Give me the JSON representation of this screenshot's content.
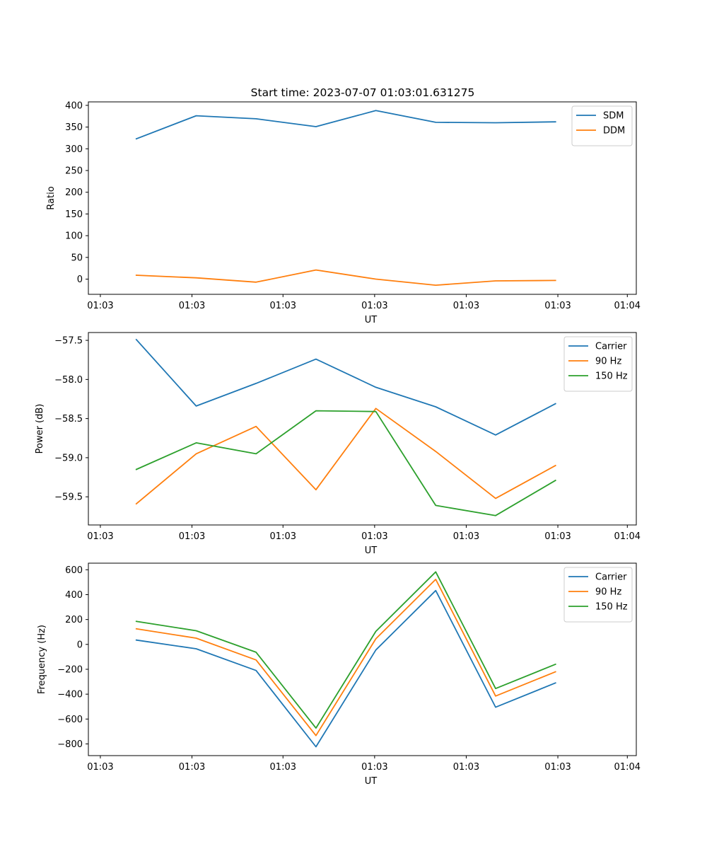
{
  "figure": {
    "title": "Start time: 2023-07-07 01:03:01.631275"
  },
  "chart_data": [
    {
      "type": "line",
      "title": "Start time: 2023-07-07 01:03:01.631275",
      "xlabel": "UT",
      "ylabel": "Ratio",
      "x": [
        1,
        2,
        3,
        4,
        5,
        6,
        7,
        8
      ],
      "xlim": [
        0.2,
        9.35
      ],
      "x_ticks": [
        0.4,
        1.93,
        3.45,
        4.98,
        6.51,
        8.04,
        9.2
      ],
      "x_tick_labels": [
        "01:03",
        "01:03",
        "01:03",
        "01:03",
        "01:03",
        "01:03",
        "01:04"
      ],
      "ylim": [
        -35,
        408
      ],
      "y_ticks": [
        0,
        50,
        100,
        150,
        200,
        250,
        300,
        350,
        400
      ],
      "y_tick_labels": [
        "0",
        "50",
        "100",
        "150",
        "200",
        "250",
        "300",
        "350",
        "400"
      ],
      "legend": "top-right",
      "series": [
        {
          "name": "SDM",
          "color": "#1f77b4",
          "values": [
            323,
            376,
            369,
            351,
            388,
            361,
            360,
            362
          ]
        },
        {
          "name": "DDM",
          "color": "#ff7f0e",
          "values": [
            9,
            3,
            -7,
            21,
            0,
            -14,
            -4,
            -3
          ]
        }
      ]
    },
    {
      "type": "line",
      "xlabel": "UT",
      "ylabel": "Power (dB)",
      "x": [
        1,
        2,
        3,
        4,
        5,
        6,
        7,
        8
      ],
      "xlim": [
        0.2,
        9.35
      ],
      "x_ticks": [
        0.4,
        1.93,
        3.45,
        4.98,
        6.51,
        8.04,
        9.2
      ],
      "x_tick_labels": [
        "01:03",
        "01:03",
        "01:03",
        "01:03",
        "01:03",
        "01:03",
        "01:04"
      ],
      "ylim": [
        -59.86,
        -57.4
      ],
      "y_ticks": [
        -59.5,
        -59.0,
        -58.5,
        -58.0,
        -57.5
      ],
      "y_tick_labels": [
        "−59.5",
        "−59.0",
        "−58.5",
        "−58.0",
        "−57.5"
      ],
      "legend": "top-right",
      "series": [
        {
          "name": "Carrier",
          "color": "#1f77b4",
          "values": [
            -57.49,
            -58.34,
            -58.05,
            -57.74,
            -58.1,
            -58.35,
            -58.71,
            -58.31
          ]
        },
        {
          "name": "90 Hz",
          "color": "#ff7f0e",
          "values": [
            -59.59,
            -58.95,
            -58.6,
            -59.41,
            -58.37,
            -58.92,
            -59.52,
            -59.1
          ]
        },
        {
          "name": "150 Hz",
          "color": "#2ca02c",
          "values": [
            -59.15,
            -58.81,
            -58.95,
            -58.4,
            -58.41,
            -59.61,
            -59.74,
            -59.29
          ]
        }
      ]
    },
    {
      "type": "line",
      "xlabel": "UT",
      "ylabel": "Frequency (Hz)",
      "x": [
        1,
        2,
        3,
        4,
        5,
        6,
        7,
        8
      ],
      "xlim": [
        0.2,
        9.35
      ],
      "x_ticks": [
        0.4,
        1.93,
        3.45,
        4.98,
        6.51,
        8.04,
        9.2
      ],
      "x_tick_labels": [
        "01:03",
        "01:03",
        "01:03",
        "01:03",
        "01:03",
        "01:03",
        "01:04"
      ],
      "ylim": [
        -894,
        653
      ],
      "y_ticks": [
        -800,
        -600,
        -400,
        -200,
        0,
        200,
        400,
        600
      ],
      "y_tick_labels": [
        "−800",
        "−600",
        "−400",
        "−200",
        "0",
        "200",
        "400",
        "600"
      ],
      "legend": "top-right",
      "series": [
        {
          "name": "Carrier",
          "color": "#1f77b4",
          "values": [
            35,
            -35,
            -210,
            -823,
            -45,
            433,
            -505,
            -310
          ]
        },
        {
          "name": "90 Hz",
          "color": "#ff7f0e",
          "values": [
            125,
            50,
            -125,
            -733,
            45,
            523,
            -415,
            -220
          ]
        },
        {
          "name": "150 Hz",
          "color": "#2ca02c",
          "values": [
            185,
            110,
            -63,
            -673,
            105,
            583,
            -355,
            -160
          ]
        }
      ]
    }
  ]
}
